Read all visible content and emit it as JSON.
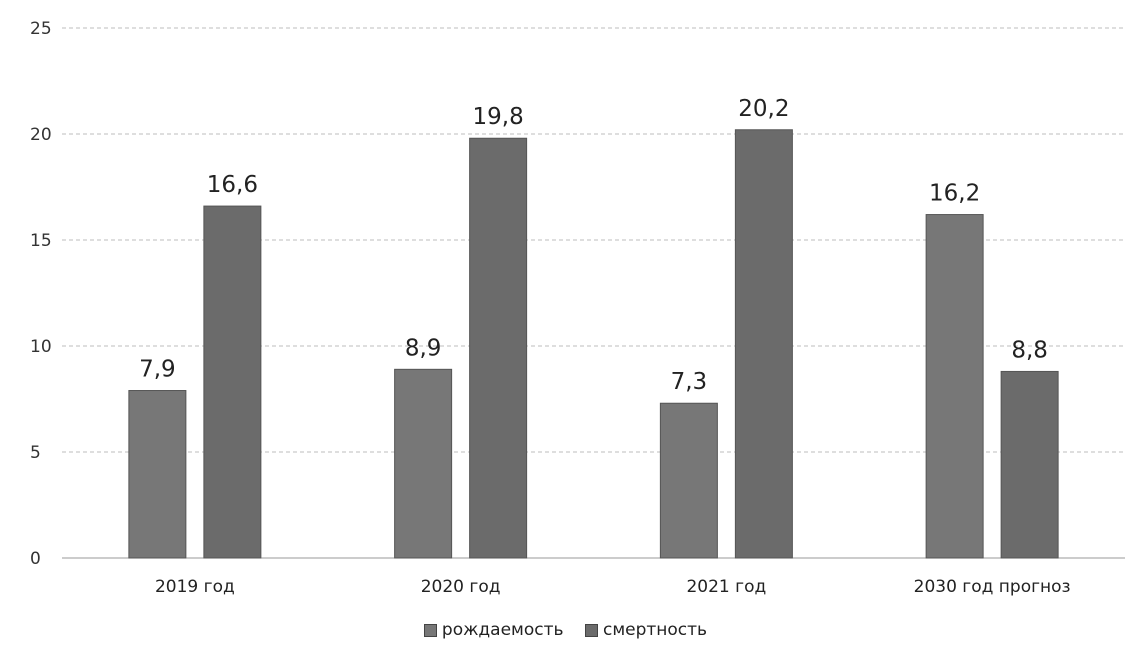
{
  "chart_data": {
    "type": "bar",
    "categories": [
      "2019 год",
      "2020 год",
      "2021 год",
      "2030 год прогноз"
    ],
    "series": [
      {
        "name": "рождаемость",
        "values": [
          7.9,
          8.9,
          7.3,
          16.2
        ],
        "labels": [
          "7,9",
          "8,9",
          "7,3",
          "16,2"
        ],
        "color": "#777777"
      },
      {
        "name": "смертность",
        "values": [
          16.6,
          19.8,
          20.2,
          8.8
        ],
        "labels": [
          "16,6",
          "19,8",
          "20,2",
          "8,8"
        ],
        "color": "#6b6b6b"
      }
    ],
    "yticks": [
      0,
      5,
      10,
      15,
      20,
      25
    ],
    "ylim": [
      0,
      25
    ],
    "grid": true,
    "legend": "bottom"
  }
}
